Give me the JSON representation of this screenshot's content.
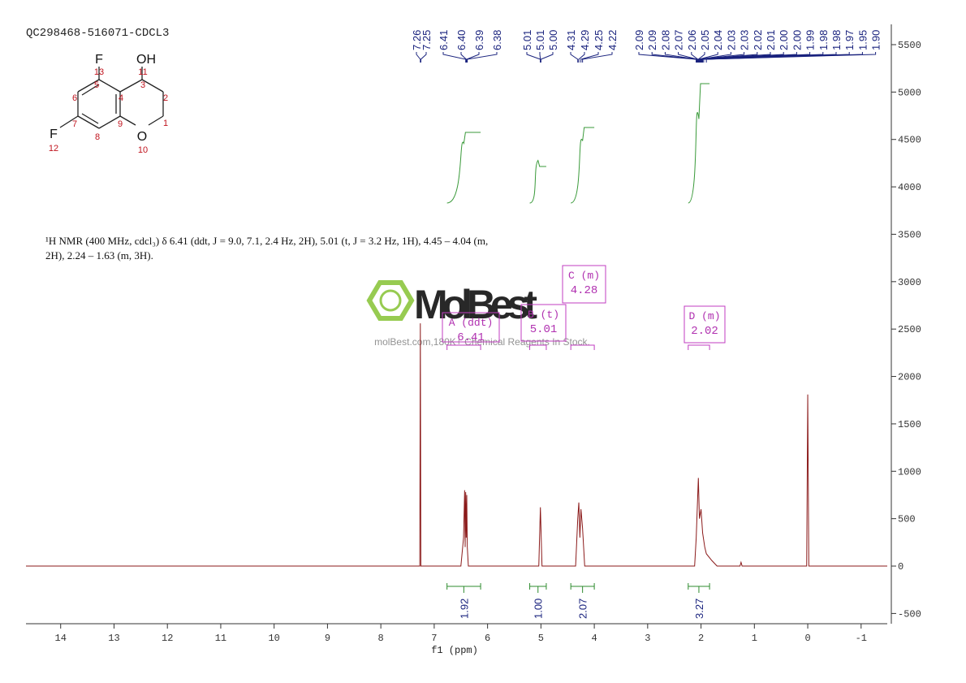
{
  "chart_data": {
    "type": "line",
    "title": "QC298468-516071-CDCL3",
    "xlabel": "f1 (ppm)",
    "xlim": [
      14.65,
      -1.49
    ],
    "ylim": [
      -608,
      5714
    ],
    "xticks": [
      14,
      13,
      12,
      11,
      10,
      9,
      8,
      7,
      6,
      5,
      4,
      3,
      2,
      1,
      0,
      -1
    ],
    "yticks": [
      -500,
      0,
      500,
      1000,
      1500,
      2000,
      2500,
      3000,
      3500,
      4000,
      4500,
      5000,
      5500
    ],
    "x": [
      14.65,
      8,
      7.27,
      7.26,
      7.25,
      6.5,
      6.45,
      6.43,
      6.42,
      6.41,
      6.4,
      6.39,
      6.38,
      6.36,
      5.04,
      5.01,
      4.98,
      4.35,
      4.31,
      4.29,
      4.27,
      4.25,
      4.22,
      4.18,
      2.12,
      2.09,
      2.05,
      2.03,
      2,
      1.97,
      1.93,
      1.9,
      1.8,
      1.7,
      1.27,
      1.25,
      1.23,
      0.02,
      0,
      -0.02,
      -1.49
    ],
    "series": [
      {
        "color": "#8b1a1a",
        "values": [
          0,
          0,
          0,
          2560,
          0,
          0,
          300,
          800,
          200,
          780,
          300,
          750,
          200,
          0,
          0,
          620,
          0,
          0,
          500,
          670,
          300,
          600,
          400,
          0,
          0,
          300,
          930,
          500,
          600,
          350,
          200,
          130,
          60,
          0,
          0,
          40,
          0,
          0,
          1810,
          0,
          0
        ]
      }
    ],
    "peak_labels": [
      7.26,
      7.25,
      6.41,
      {
        "value": 6.4,
        "label": "6.40"
      },
      6.39,
      6.38,
      5.01,
      5.01,
      {
        "value": 5,
        "label": "5.00"
      },
      4.31,
      4.29,
      4.25,
      4.22,
      2.09,
      2.09,
      2.08,
      2.07,
      2.06,
      2.05,
      2.04,
      2.03,
      2.03,
      2.02,
      2.01,
      {
        "value": 2,
        "label": "2.00"
      },
      {
        "value": 2,
        "label": "2.00"
      },
      1.99,
      1.98,
      1.98,
      1.97,
      1.95,
      {
        "value": 1.9,
        "label": "1.90"
      }
    ],
    "integrals": [
      {
        "range": [
          6.76,
          6.13
        ],
        "value": 1.92
      },
      {
        "range": [
          5.21,
          4.9
        ],
        "value": {
          "value": 1,
          "label": "1.00"
        }
      },
      {
        "range": [
          4.44,
          4
        ],
        "value": 2.07
      },
      {
        "range": [
          2.24,
          1.84
        ],
        "value": 3.27
      }
    ],
    "multiplets": [
      {
        "name": "A (ddt)",
        "shift": 6.41
      },
      {
        "name": "B (t)",
        "shift": 5.01
      },
      {
        "name": "C (m)",
        "shift": 4.28
      },
      {
        "name": "D (m)",
        "shift": 2.02
      }
    ]
  },
  "description": "¹H NMR (400 MHz, cdcl₃) δ 6.41 (ddt, J = 9.0, 7.1, 2.4 Hz, 2H), 5.01 (t, J = 3.2 Hz, 1H), 4.45 – 4.04 (m, 2H), 2.24 – 1.63 (m, 3H).",
  "molecule": {
    "atoms": [
      {
        "label": "F",
        "number": 13
      },
      {
        "label": "OH",
        "number": 11
      },
      {
        "label": "O",
        "number": 10
      },
      {
        "label": "F",
        "number": 12
      }
    ],
    "carbons": [
      1,
      2,
      3,
      4,
      5,
      6,
      7,
      8,
      9
    ]
  },
  "watermark": {
    "brand": "MolBest",
    "tagline": "molBest.com,180K+ Chemical Reagents In Stock."
  }
}
